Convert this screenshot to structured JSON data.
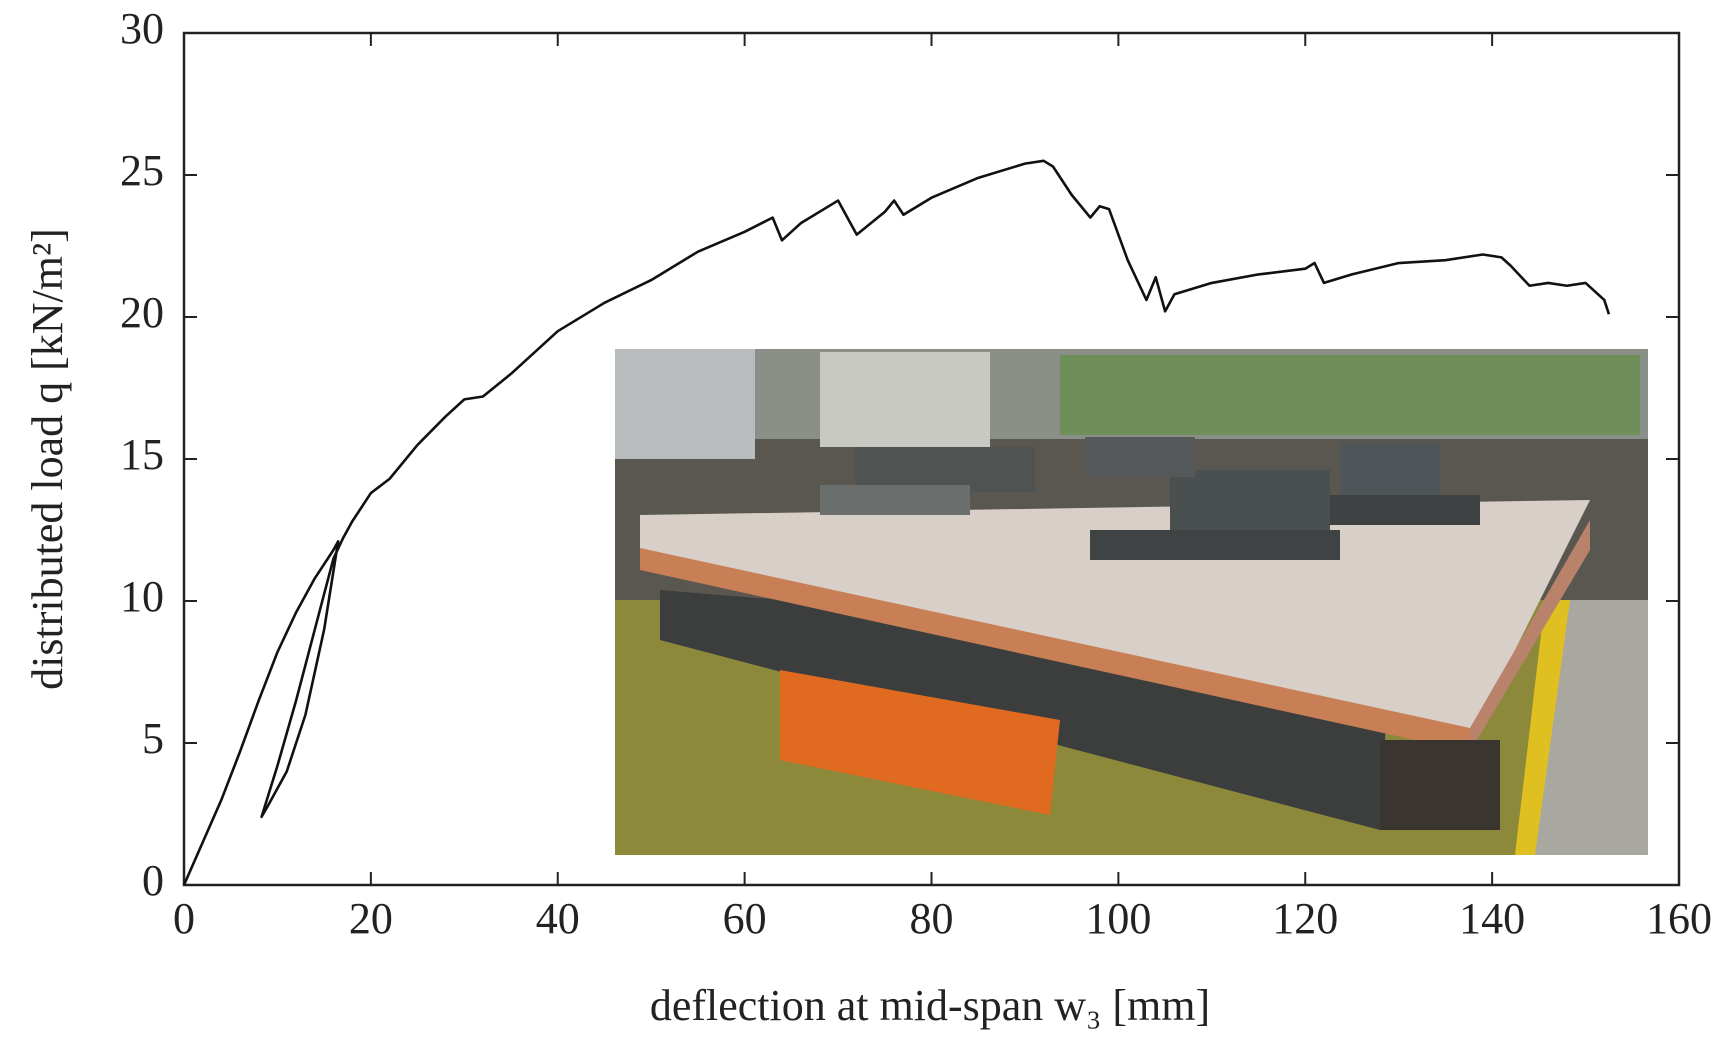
{
  "chart_data": {
    "type": "line",
    "x_label": "deflection at mid-span w₃ [mm]",
    "y_label": "distributed load q [kN/m²]",
    "x": [
      0,
      2,
      4,
      6,
      8,
      10,
      12,
      14,
      16,
      16.5,
      15,
      13,
      11,
      9,
      8.3,
      10,
      12,
      14,
      16,
      17,
      18,
      20,
      22,
      25,
      28,
      30,
      32,
      35,
      40,
      45,
      50,
      55,
      60,
      63,
      64,
      66,
      70,
      71,
      72,
      75,
      76,
      77,
      80,
      85,
      90,
      92,
      93,
      95,
      97,
      98,
      99,
      101,
      103,
      104,
      105,
      106,
      110,
      115,
      120,
      121,
      122,
      125,
      130,
      135,
      139,
      141,
      142,
      144,
      146,
      148,
      150,
      152,
      152.5
    ],
    "values": [
      0,
      1.5,
      3,
      4.7,
      6.5,
      8.2,
      9.6,
      10.8,
      11.8,
      12.1,
      9,
      6,
      4,
      2.8,
      2.4,
      4.2,
      6.5,
      9,
      11.5,
      12.2,
      12.8,
      13.8,
      14.3,
      15.5,
      16.5,
      17.1,
      17.2,
      18,
      19.5,
      20.5,
      21.3,
      22.3,
      23,
      23.5,
      22.7,
      23.3,
      24.1,
      23.5,
      22.9,
      23.7,
      24.1,
      23.6,
      24.2,
      24.9,
      25.4,
      25.5,
      25.3,
      24.3,
      23.5,
      23.9,
      23.8,
      22,
      20.6,
      21.4,
      20.2,
      20.8,
      21.2,
      21.5,
      21.7,
      21.9,
      21.2,
      21.5,
      21.9,
      22,
      22.2,
      22.1,
      21.8,
      21.1,
      21.2,
      21.1,
      21.2,
      20.6,
      20.1
    ],
    "color": "#111111",
    "xlim": [
      0,
      160
    ],
    "ylim": [
      0,
      30
    ],
    "xticks": [
      0,
      20,
      40,
      60,
      80,
      100,
      120,
      140,
      160
    ],
    "yticks": [
      0,
      5,
      10,
      15,
      20,
      25,
      30
    ]
  }
}
